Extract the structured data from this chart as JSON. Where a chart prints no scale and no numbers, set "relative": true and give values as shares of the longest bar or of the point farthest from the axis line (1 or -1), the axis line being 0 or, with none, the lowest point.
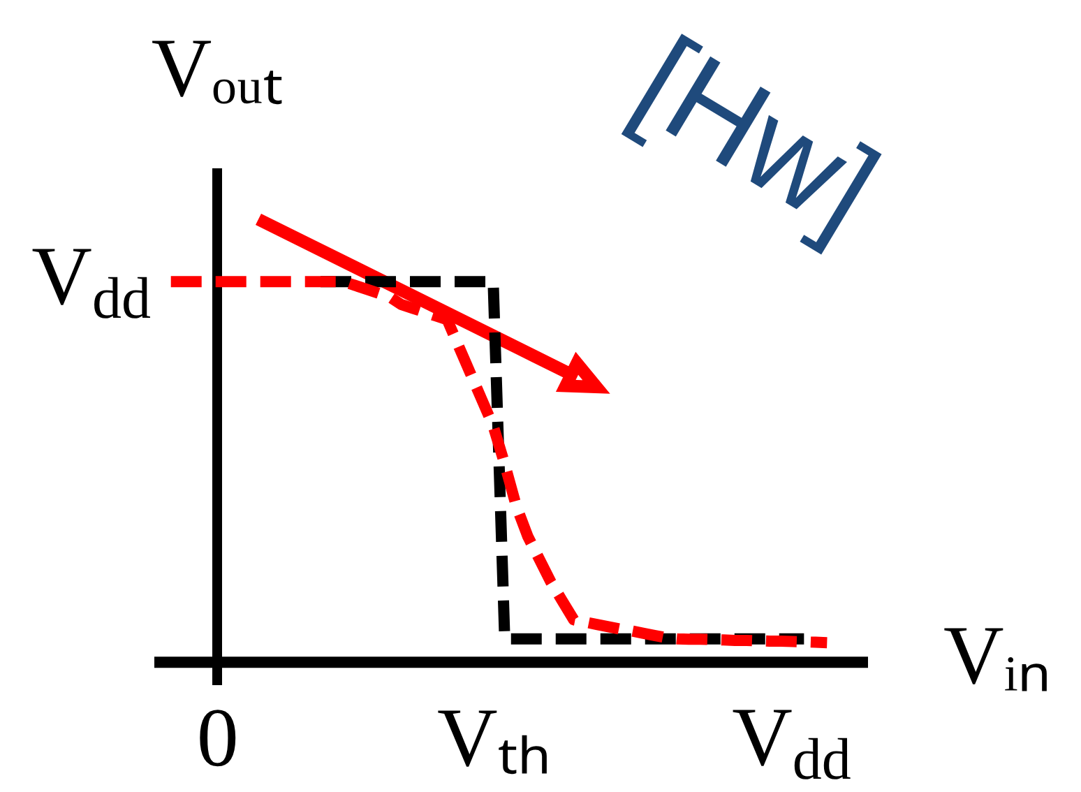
{
  "chart_data": {
    "type": "line",
    "relative": true,
    "xlabel": "Vᵢₙ",
    "ylabel": "Vₒᵤₜ",
    "annotations": [
      "[Hw]",
      "V$_{dd}$"
    ],
    "categories": [
      null,
      null,
      null,
      null,
      null,
      "0",
      null,
      null,
      null,
      null,
      null,
      null,
      null,
      null,
      null,
      null,
      null,
      null,
      null,
      null,
      null,
      null,
      null,
      null,
      null,
      null,
      null,
      null,
      null,
      "Vₜₕ",
      null,
      null,
      null,
      null,
      null,
      null,
      null,
      null,
      null,
      null,
      null,
      null,
      null,
      null,
      null,
      null,
      null,
      null,
      null,
      null,
      null,
      null,
      null,
      null,
      null,
      "V$_{dd}$",
      null,
      null,
      null,
      null,
      null,
      null
    ],
    "marker": "none",
    "line_style": "dashed",
    "series": [
      {
        "color": "#000000",
        "values": [
          null,
          null,
          null,
          null,
          null,
          null,
          null,
          null,
          null,
          null,
          null,
          null,
          null,
          null,
          1,
          1,
          1,
          1,
          1,
          1,
          1,
          1,
          1,
          1,
          1,
          1,
          1,
          1,
          1,
          1,
          0.06,
          0.06,
          0.06,
          0.06,
          0.06,
          0.06,
          0.06,
          0.06,
          0.06,
          0.06,
          0.06,
          0.06,
          0.06,
          0.06,
          0.06,
          0.06,
          0.06,
          0.06,
          0.06,
          0.06,
          0.06,
          0.06,
          0.06,
          0.06,
          0.06,
          0.06,
          0.06,
          null,
          null,
          null,
          null,
          null
        ]
      },
      {
        "color": "#ff0000",
        "values": [
          null,
          1,
          1,
          1,
          1,
          1,
          1,
          1,
          1,
          1,
          1,
          1,
          1,
          1,
          1,
          1,
          1,
          0.99,
          0.98,
          0.97,
          0.96,
          0.94,
          0.93,
          0.92,
          0.91,
          0.9,
          0.83,
          0.76,
          0.69,
          0.62,
          0.52,
          0.41,
          0.33,
          0.27,
          0.21,
          0.16,
          0.11,
          0.104,
          0.098,
          0.092,
          0.086,
          0.081,
          0.075,
          0.069,
          0.063,
          0.06,
          0.059,
          0.059,
          0.058,
          0.057,
          0.056,
          0.056,
          0.055,
          0.054,
          0.054,
          0.053,
          0.052,
          0.051,
          0.05,
          null,
          null,
          null
        ]
      }
    ]
  }
}
